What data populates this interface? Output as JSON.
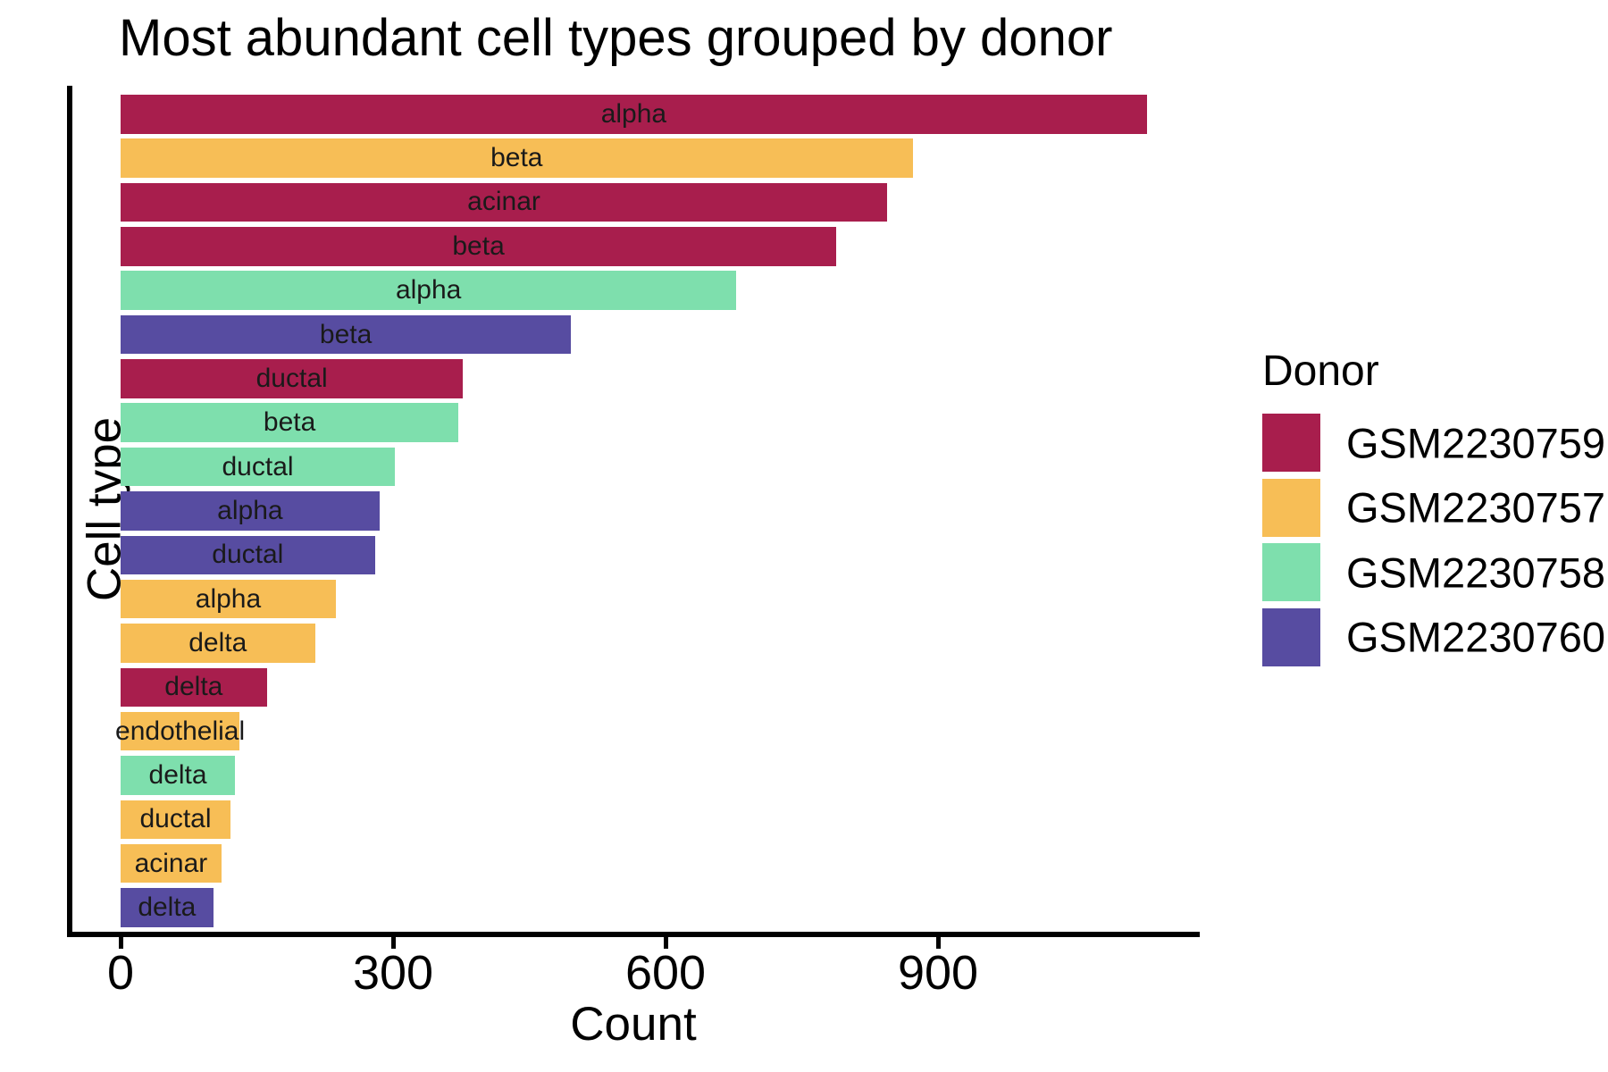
{
  "chart_data": {
    "type": "bar",
    "orientation": "horizontal",
    "title": "Most abundant cell types grouped by donor",
    "xlabel": "Count",
    "ylabel": "Cell type",
    "xlim": [
      0,
      1188
    ],
    "xticks": [
      0,
      300,
      600,
      900
    ],
    "grid": false,
    "legend": {
      "title": "Donor",
      "position": "right",
      "entries": [
        {
          "label": "GSM2230759",
          "color": "#A81E4D"
        },
        {
          "label": "GSM2230757",
          "color": "#F7BE56"
        },
        {
          "label": "GSM2230758",
          "color": "#7EDFAD"
        },
        {
          "label": "GSM2230760",
          "color": "#574CA1"
        }
      ]
    },
    "bars": [
      {
        "cell_type": "alpha",
        "donor": "GSM2230759",
        "count": 1130
      },
      {
        "cell_type": "beta",
        "donor": "GSM2230757",
        "count": 872
      },
      {
        "cell_type": "acinar",
        "donor": "GSM2230759",
        "count": 844
      },
      {
        "cell_type": "beta",
        "donor": "GSM2230759",
        "count": 788
      },
      {
        "cell_type": "alpha",
        "donor": "GSM2230758",
        "count": 678
      },
      {
        "cell_type": "beta",
        "donor": "GSM2230760",
        "count": 496
      },
      {
        "cell_type": "ductal",
        "donor": "GSM2230759",
        "count": 377
      },
      {
        "cell_type": "beta",
        "donor": "GSM2230758",
        "count": 372
      },
      {
        "cell_type": "ductal",
        "donor": "GSM2230758",
        "count": 302
      },
      {
        "cell_type": "alpha",
        "donor": "GSM2230760",
        "count": 285
      },
      {
        "cell_type": "ductal",
        "donor": "GSM2230760",
        "count": 280
      },
      {
        "cell_type": "alpha",
        "donor": "GSM2230757",
        "count": 237
      },
      {
        "cell_type": "delta",
        "donor": "GSM2230757",
        "count": 214
      },
      {
        "cell_type": "delta",
        "donor": "GSM2230759",
        "count": 161
      },
      {
        "cell_type": "endothelial",
        "donor": "GSM2230757",
        "count": 131
      },
      {
        "cell_type": "delta",
        "donor": "GSM2230758",
        "count": 126
      },
      {
        "cell_type": "ductal",
        "donor": "GSM2230757",
        "count": 121
      },
      {
        "cell_type": "acinar",
        "donor": "GSM2230757",
        "count": 111
      },
      {
        "cell_type": "delta",
        "donor": "GSM2230760",
        "count": 102
      }
    ],
    "colors": {
      "crimson": "#A81E4D",
      "orange": "#F7BE56",
      "green": "#7EDFAD",
      "purple": "#574CA1"
    }
  }
}
